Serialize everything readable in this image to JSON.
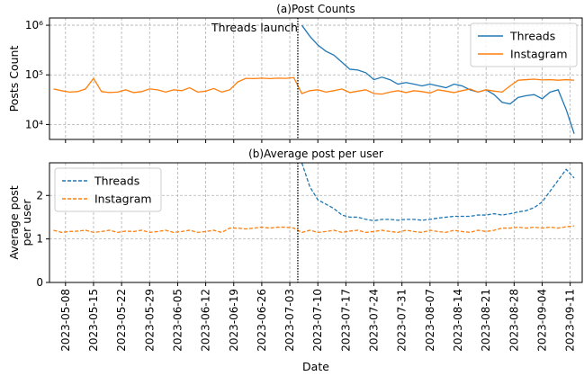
{
  "chart_data": [
    {
      "type": "line",
      "title": "(a)Post Counts",
      "ylabel": "Posts Count",
      "log_scale": true,
      "grid": true,
      "legend": "upper right",
      "xlim": [
        "2023-05-04",
        "2023-09-14"
      ],
      "xticks": [
        "2023-05-08",
        "2023-05-15",
        "2023-05-22",
        "2023-05-29",
        "2023-06-05",
        "2023-06-12",
        "2023-06-19",
        "2023-06-26",
        "2023-07-03",
        "2023-07-10",
        "2023-07-17",
        "2023-07-24",
        "2023-07-31",
        "2023-08-07",
        "2023-08-14",
        "2023-08-21",
        "2023-08-28",
        "2023-09-04",
        "2023-09-11"
      ],
      "ylim": [
        5000,
        1400000
      ],
      "yticks": [
        {
          "value": 10000,
          "label": "10⁴"
        },
        {
          "value": 100000,
          "label": "10⁵"
        },
        {
          "value": 1000000,
          "label": "10⁶"
        }
      ],
      "annotations": [
        {
          "text": "Threads launch",
          "x": "2023-07-05"
        }
      ],
      "x": [
        "2023-05-05",
        "2023-05-07",
        "2023-05-09",
        "2023-05-11",
        "2023-05-13",
        "2023-05-15",
        "2023-05-17",
        "2023-05-19",
        "2023-05-21",
        "2023-05-23",
        "2023-05-25",
        "2023-05-27",
        "2023-05-29",
        "2023-05-31",
        "2023-06-02",
        "2023-06-04",
        "2023-06-06",
        "2023-06-08",
        "2023-06-10",
        "2023-06-12",
        "2023-06-14",
        "2023-06-16",
        "2023-06-18",
        "2023-06-20",
        "2023-06-22",
        "2023-06-24",
        "2023-06-26",
        "2023-06-28",
        "2023-06-30",
        "2023-07-02",
        "2023-07-04",
        "2023-07-06",
        "2023-07-08",
        "2023-07-10",
        "2023-07-12",
        "2023-07-14",
        "2023-07-16",
        "2023-07-18",
        "2023-07-20",
        "2023-07-22",
        "2023-07-24",
        "2023-07-26",
        "2023-07-28",
        "2023-07-30",
        "2023-08-01",
        "2023-08-03",
        "2023-08-05",
        "2023-08-07",
        "2023-08-09",
        "2023-08-11",
        "2023-08-13",
        "2023-08-15",
        "2023-08-17",
        "2023-08-19",
        "2023-08-21",
        "2023-08-23",
        "2023-08-25",
        "2023-08-27",
        "2023-08-29",
        "2023-08-31",
        "2023-09-02",
        "2023-09-04",
        "2023-09-06",
        "2023-09-08",
        "2023-09-10",
        "2023-09-12"
      ],
      "series": [
        {
          "name": "Threads",
          "color": "#1f77b4",
          "linestyle": "solid",
          "values": [
            null,
            null,
            null,
            null,
            null,
            null,
            null,
            null,
            null,
            null,
            null,
            null,
            null,
            null,
            null,
            null,
            null,
            null,
            null,
            null,
            null,
            null,
            null,
            null,
            null,
            null,
            null,
            null,
            null,
            null,
            null,
            1000000,
            600000,
            400000,
            300000,
            250000,
            180000,
            130000,
            125000,
            110000,
            80000,
            90000,
            80000,
            65000,
            70000,
            65000,
            60000,
            65000,
            60000,
            55000,
            65000,
            60000,
            50000,
            45000,
            50000,
            40000,
            28000,
            26000,
            35000,
            38000,
            40000,
            33000,
            45000,
            50000,
            20000,
            6500
          ]
        },
        {
          "name": "Instagram",
          "color": "#ff7f0e",
          "linestyle": "solid",
          "values": [
            52000,
            48000,
            45000,
            46000,
            52000,
            85000,
            46000,
            44000,
            45000,
            50000,
            44000,
            46000,
            52000,
            50000,
            45000,
            50000,
            48000,
            55000,
            45000,
            47000,
            53000,
            45000,
            50000,
            72000,
            85000,
            84000,
            86000,
            84000,
            86000,
            85000,
            88000,
            42000,
            48000,
            50000,
            45000,
            48000,
            52000,
            44000,
            47000,
            50000,
            42000,
            41000,
            45000,
            48000,
            44000,
            48000,
            46000,
            43000,
            50000,
            47000,
            44000,
            48000,
            52000,
            45000,
            50000,
            47000,
            45000,
            60000,
            78000,
            80000,
            82000,
            79000,
            80000,
            78000,
            80000,
            78000
          ]
        }
      ]
    },
    {
      "type": "line",
      "title": "(b)Average post per user",
      "ylabel": [
        "Average post",
        "per user"
      ],
      "xlabel": "Date",
      "grid": true,
      "legend": "upper left",
      "xlim": [
        "2023-05-04",
        "2023-09-14"
      ],
      "xticks": [
        "2023-05-08",
        "2023-05-15",
        "2023-05-22",
        "2023-05-29",
        "2023-06-05",
        "2023-06-12",
        "2023-06-19",
        "2023-06-26",
        "2023-07-03",
        "2023-07-10",
        "2023-07-17",
        "2023-07-24",
        "2023-07-31",
        "2023-08-07",
        "2023-08-14",
        "2023-08-21",
        "2023-08-28",
        "2023-09-04",
        "2023-09-11"
      ],
      "ylim": [
        0,
        2.75
      ],
      "yticks": [
        0,
        1,
        2
      ],
      "vline": "2023-07-05",
      "x": [
        "2023-05-05",
        "2023-05-07",
        "2023-05-09",
        "2023-05-11",
        "2023-05-13",
        "2023-05-15",
        "2023-05-17",
        "2023-05-19",
        "2023-05-21",
        "2023-05-23",
        "2023-05-25",
        "2023-05-27",
        "2023-05-29",
        "2023-05-31",
        "2023-06-02",
        "2023-06-04",
        "2023-06-06",
        "2023-06-08",
        "2023-06-10",
        "2023-06-12",
        "2023-06-14",
        "2023-06-16",
        "2023-06-18",
        "2023-06-20",
        "2023-06-22",
        "2023-06-24",
        "2023-06-26",
        "2023-06-28",
        "2023-06-30",
        "2023-07-02",
        "2023-07-04",
        "2023-07-06",
        "2023-07-08",
        "2023-07-10",
        "2023-07-12",
        "2023-07-14",
        "2023-07-16",
        "2023-07-18",
        "2023-07-20",
        "2023-07-22",
        "2023-07-24",
        "2023-07-26",
        "2023-07-28",
        "2023-07-30",
        "2023-08-01",
        "2023-08-03",
        "2023-08-05",
        "2023-08-07",
        "2023-08-09",
        "2023-08-11",
        "2023-08-13",
        "2023-08-15",
        "2023-08-17",
        "2023-08-19",
        "2023-08-21",
        "2023-08-23",
        "2023-08-25",
        "2023-08-27",
        "2023-08-29",
        "2023-08-31",
        "2023-09-02",
        "2023-09-04",
        "2023-09-06",
        "2023-09-08",
        "2023-09-10",
        "2023-09-12"
      ],
      "series": [
        {
          "name": "Threads",
          "color": "#1f77b4",
          "linestyle": "dashed",
          "values": [
            null,
            null,
            null,
            null,
            null,
            null,
            null,
            null,
            null,
            null,
            null,
            null,
            null,
            null,
            null,
            null,
            null,
            null,
            null,
            null,
            null,
            null,
            null,
            null,
            null,
            null,
            null,
            null,
            null,
            null,
            null,
            2.75,
            2.2,
            1.9,
            1.8,
            1.7,
            1.55,
            1.5,
            1.5,
            1.45,
            1.42,
            1.45,
            1.45,
            1.43,
            1.45,
            1.45,
            1.43,
            1.45,
            1.48,
            1.5,
            1.52,
            1.52,
            1.52,
            1.55,
            1.55,
            1.58,
            1.55,
            1.58,
            1.62,
            1.65,
            1.72,
            1.85,
            2.1,
            2.35,
            2.6,
            2.4
          ]
        },
        {
          "name": "Instagram",
          "color": "#ff7f0e",
          "linestyle": "dashed",
          "values": [
            1.2,
            1.15,
            1.17,
            1.18,
            1.2,
            1.15,
            1.17,
            1.2,
            1.15,
            1.18,
            1.17,
            1.2,
            1.15,
            1.17,
            1.2,
            1.15,
            1.17,
            1.2,
            1.15,
            1.17,
            1.2,
            1.15,
            1.25,
            1.25,
            1.23,
            1.25,
            1.27,
            1.25,
            1.27,
            1.27,
            1.25,
            1.15,
            1.2,
            1.15,
            1.17,
            1.2,
            1.15,
            1.18,
            1.2,
            1.15,
            1.17,
            1.2,
            1.17,
            1.15,
            1.2,
            1.17,
            1.15,
            1.2,
            1.17,
            1.15,
            1.2,
            1.17,
            1.15,
            1.2,
            1.17,
            1.2,
            1.25,
            1.25,
            1.27,
            1.25,
            1.27,
            1.25,
            1.27,
            1.25,
            1.28,
            1.3
          ]
        }
      ]
    }
  ]
}
